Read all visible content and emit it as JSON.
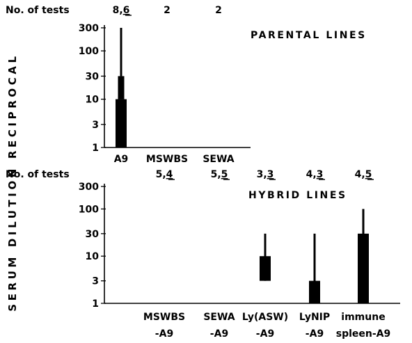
{
  "y_axis_label": "SERUM DILUTION RECIPROCAL",
  "colors": {
    "ink": "#000000",
    "background": "#ffffff"
  },
  "chart_data": [
    {
      "type": "bar",
      "panel": "top",
      "title": "PARENTAL LINES",
      "scale": "log",
      "ylim": [
        1,
        300
      ],
      "yticks": [
        "1",
        "3",
        "10",
        "30",
        "100",
        "300"
      ],
      "tests_label": "No. of tests",
      "categories": [
        {
          "label": "A9",
          "label2": "",
          "tests_a": "8",
          "tests_b": "6",
          "sep": ",",
          "thick_low": 1,
          "thick_high": 10,
          "mid_low": 10,
          "mid_high": 30,
          "thin_low": 30,
          "thin_high": 300
        },
        {
          "label": "MSWBS",
          "label2": "",
          "tests_a": "2",
          "tests_b": "",
          "sep": "",
          "thick_low": null,
          "thick_high": null,
          "mid_low": null,
          "mid_high": null,
          "thin_low": null,
          "thin_high": null
        },
        {
          "label": "SEWA",
          "label2": "",
          "tests_a": "2",
          "tests_b": "",
          "sep": "",
          "thick_low": null,
          "thick_high": null,
          "mid_low": null,
          "mid_high": null,
          "thin_low": null,
          "thin_high": null
        }
      ]
    },
    {
      "type": "bar",
      "panel": "bottom",
      "title": "HYBRID LINES",
      "scale": "log",
      "ylim": [
        1,
        300
      ],
      "yticks": [
        "1",
        "3",
        "10",
        "30",
        "100",
        "300"
      ],
      "tests_label": "No. of tests",
      "categories": [
        {
          "label": "MSWBS",
          "label2": "-A9",
          "tests_a": "5",
          "tests_b": "4",
          "sep": ",",
          "thick_low": null,
          "thick_high": null,
          "mid_low": null,
          "mid_high": null,
          "thin_low": null,
          "thin_high": null
        },
        {
          "label": "SEWA",
          "label2": "-A9",
          "tests_a": "5",
          "tests_b": "5",
          "sep": ",",
          "thick_low": null,
          "thick_high": null,
          "mid_low": null,
          "mid_high": null,
          "thin_low": null,
          "thin_high": null
        },
        {
          "label": "Ly(ASW)",
          "label2": "-A9",
          "tests_a": "3",
          "tests_b": "3",
          "sep": ",",
          "thick_low": 3,
          "thick_high": 10,
          "mid_low": null,
          "mid_high": null,
          "thin_low": 3,
          "thin_high": 30
        },
        {
          "label": "LyNIP",
          "label2": "-A9",
          "tests_a": "4",
          "tests_b": "3",
          "sep": ",",
          "thick_low": 1,
          "thick_high": 3,
          "mid_low": null,
          "mid_high": null,
          "thin_low": 1,
          "thin_high": 30
        },
        {
          "label": "immune",
          "label2": "spleen-A9",
          "tests_a": "4",
          "tests_b": "5",
          "sep": ",",
          "thick_low": 1,
          "thick_high": 30,
          "mid_low": null,
          "mid_high": null,
          "thin_low": 1,
          "thin_high": 100
        }
      ]
    }
  ]
}
